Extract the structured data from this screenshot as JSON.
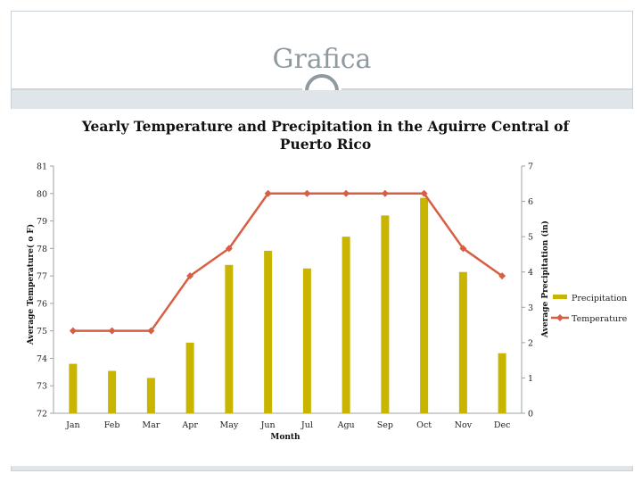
{
  "slide": {
    "title": "Grafica"
  },
  "colors": {
    "bar": "#c9b400",
    "line": "#d65f44",
    "frame": "#c9d1d6",
    "background": "#dfe5e8"
  },
  "chart_data": {
    "type": "bar",
    "title": "Yearly Temperature and Precipitation in the Aguirre Central of Puerto Rico",
    "xlabel": "Month",
    "ylabel_left": "Average Temperature( o F)",
    "ylabel_right": "Average Precipitation (in)",
    "categories": [
      "Jan",
      "Feb",
      "Mar",
      "Apr",
      "May",
      "Jun",
      "Jul",
      "Agu",
      "Sep",
      "Oct",
      "Nov",
      "Dec"
    ],
    "series": [
      {
        "name": "Precipitation",
        "type": "bar",
        "axis": "right",
        "values": [
          1.4,
          1.2,
          1.0,
          2.0,
          4.2,
          4.6,
          4.1,
          5.0,
          5.6,
          6.1,
          4.0,
          1.7
        ]
      },
      {
        "name": "Temperature",
        "type": "line",
        "axis": "left",
        "values": [
          75,
          75,
          75,
          77,
          78,
          80,
          80,
          80,
          80,
          80,
          78,
          77
        ]
      }
    ],
    "ylim_left": [
      72,
      81
    ],
    "yticks_left": [
      72,
      73,
      74,
      75,
      76,
      77,
      78,
      79,
      80,
      81
    ],
    "ylim_right": [
      0,
      7
    ],
    "yticks_right": [
      0,
      1,
      2,
      3,
      4,
      5,
      6,
      7
    ],
    "legend_position": "right",
    "grid": false
  }
}
